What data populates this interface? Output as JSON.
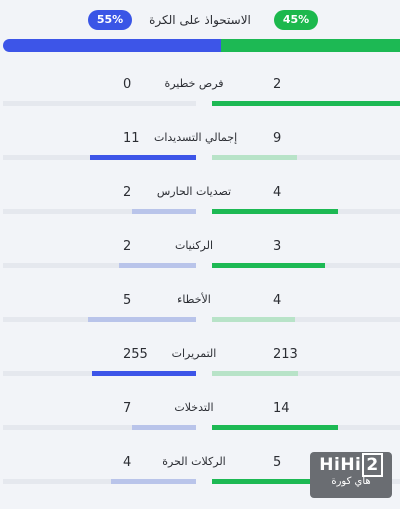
{
  "possession": {
    "title": "الاستحواذ على الكرة",
    "home_label": "45%",
    "away_label": "55%",
    "home_value": 45,
    "away_value": 55
  },
  "colors": {
    "home_bar": "#1db954",
    "home_pill": "#1cb84d",
    "away_bar": "#3d55e8",
    "away_pill": "#3a55e6",
    "home_light": "#b8e3c8",
    "away_light": "#b9c4ea"
  },
  "stats": [
    {
      "label": "فرص خطيرة",
      "home": "2",
      "away": "0",
      "home_fill": 1.0,
      "away_fill": 0.0,
      "home_style": "full",
      "away_style": "none"
    },
    {
      "label": "إجمالي التسديدات",
      "home": "9",
      "away": "11",
      "home_fill": 0.45,
      "away_fill": 0.55,
      "home_style": "light",
      "away_style": "full"
    },
    {
      "label": "تصديات الحارس",
      "home": "4",
      "away": "2",
      "home_fill": 0.67,
      "away_fill": 0.33,
      "home_style": "full",
      "away_style": "light"
    },
    {
      "label": "الركنيات",
      "home": "3",
      "away": "2",
      "home_fill": 0.6,
      "away_fill": 0.4,
      "home_style": "full",
      "away_style": "light"
    },
    {
      "label": "الأخطاء",
      "home": "4",
      "away": "5",
      "home_fill": 0.44,
      "away_fill": 0.56,
      "home_style": "light",
      "away_style": "light"
    },
    {
      "label": "التمريرات",
      "home": "213",
      "away": "255",
      "home_fill": 0.46,
      "away_fill": 0.54,
      "home_style": "light",
      "away_style": "full"
    },
    {
      "label": "التدخلات",
      "home": "14",
      "away": "7",
      "home_fill": 0.67,
      "away_fill": 0.33,
      "home_style": "full",
      "away_style": "light"
    },
    {
      "label": "الركلات الحرة",
      "home": "5",
      "away": "4",
      "home_fill": 0.56,
      "away_fill": 0.44,
      "home_style": "full",
      "away_style": "light"
    }
  ],
  "watermark": {
    "brand_left": "HiHi",
    "brand_right": "2",
    "tag": "هاي كورة"
  }
}
